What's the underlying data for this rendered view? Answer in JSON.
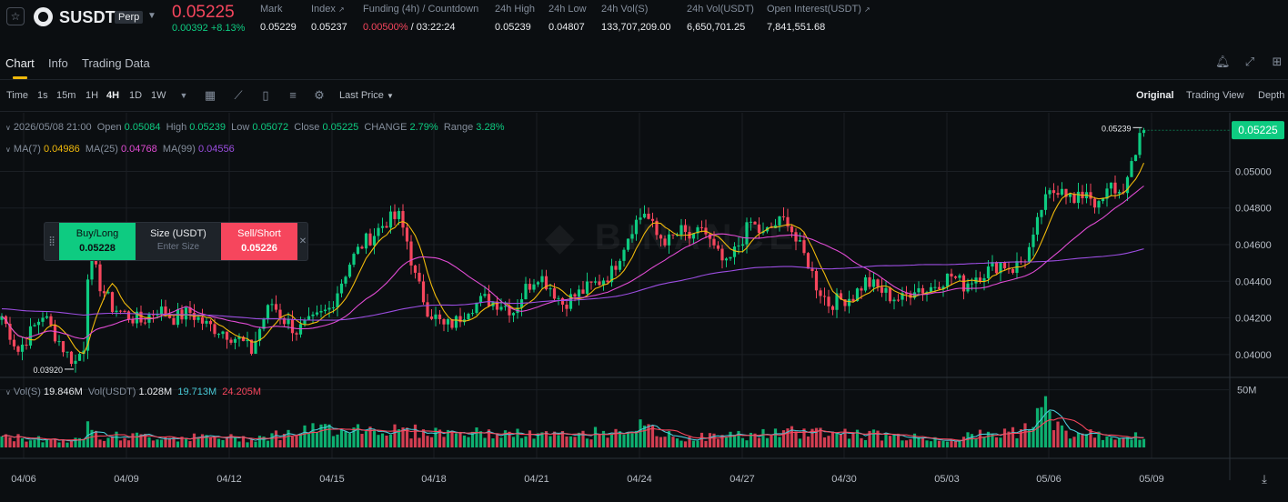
{
  "header": {
    "symbol": "SUSDT",
    "badge": "Perp",
    "last_price": "0.05225",
    "change": "0.00392 +8.13%",
    "stats": [
      {
        "label": "Mark",
        "value": "0.05229"
      },
      {
        "label": "Index",
        "value": "0.05237"
      },
      {
        "label": "Funding (4h) / Countdown",
        "value_red": "0.00500%",
        "value": " / 03:22:24"
      },
      {
        "label": "24h High",
        "value": "0.05239"
      },
      {
        "label": "24h Low",
        "value": "0.04807"
      },
      {
        "label": "24h Vol(S)",
        "value": "133,707,209.00"
      },
      {
        "label": "24h Vol(USDT)",
        "value": "6,650,701.25"
      },
      {
        "label": "Open Interest(USDT)",
        "value": "7,841,551.68"
      }
    ]
  },
  "tabs": [
    {
      "label": "Chart"
    },
    {
      "label": "Info"
    },
    {
      "label": "Trading Data"
    }
  ],
  "toolbar": {
    "intervals": [
      "Time",
      "1s",
      "15m",
      "1H",
      "4H",
      "1D",
      "1W"
    ],
    "active_interval": "4H",
    "price_type": "Last Price",
    "views": [
      "Original",
      "Trading View",
      "Depth"
    ],
    "active_view": "Original"
  },
  "legend": {
    "ohlc": {
      "date": "2026/05/08 21:00",
      "open_label": "Open",
      "open": "0.05084",
      "high_label": "High",
      "high": "0.05239",
      "low_label": "Low",
      "low": "0.05072",
      "close_label": "Close",
      "close": "0.05225",
      "change_label": "CHANGE",
      "change": "2.79%",
      "range_label": "Range",
      "range": "3.28%"
    },
    "ma": {
      "ma7_label": "MA(7)",
      "ma7": "0.04986",
      "ma25_label": "MA(25)",
      "ma25": "0.04768",
      "ma99_label": "MA(99)",
      "ma99": "0.04556"
    },
    "vol": {
      "vol_s_label": "Vol(S)",
      "vol_s": "19.846M",
      "vol_usdt_label": "Vol(USDT)",
      "vol_usdt": "1.028M",
      "v1": "19.713M",
      "v2": "24.205M"
    }
  },
  "trade_panel": {
    "buy_label": "Buy/Long",
    "buy_price": "0.05228",
    "size_label": "Size (USDT)",
    "size_placeholder": "Enter Size",
    "sell_label": "Sell/Short",
    "sell_price": "0.05226"
  },
  "chart_data": {
    "type": "candlestick",
    "price_axis": {
      "ticks": [
        "0.05000",
        "0.04800",
        "0.04600",
        "0.04400",
        "0.04200",
        "0.04000"
      ],
      "min": 0.0388,
      "max": 0.0532
    },
    "current_price_label": "0.05225",
    "high_marker": "0.05239",
    "low_marker": "0.03920",
    "volume_axis": {
      "ticks": [
        "50M"
      ],
      "max": 60
    },
    "x_ticks": [
      "04/06",
      "04/09",
      "04/12",
      "04/15",
      "04/18",
      "04/21",
      "04/24",
      "04/27",
      "04/30",
      "05/03",
      "05/06",
      "05/09"
    ],
    "colors": {
      "up": "#0ecb81",
      "down": "#f6465d",
      "ma7": "#f0b90b",
      "ma25": "#e04bd3",
      "ma99": "#9b4de0",
      "vol_ma1": "#48c9d6",
      "vol_ma2": "#f6465d"
    },
    "close_path": [
      [
        0,
        0.0421
      ],
      [
        4,
        0.0402
      ],
      [
        7,
        0.0412
      ],
      [
        10,
        0.0422
      ],
      [
        13,
        0.0411
      ],
      [
        16,
        0.04
      ],
      [
        18,
        0.0396
      ],
      [
        20,
        0.0405
      ],
      [
        21,
        0.0445
      ],
      [
        22,
        0.0452
      ],
      [
        24,
        0.0438
      ],
      [
        27,
        0.0426
      ],
      [
        30,
        0.0422
      ],
      [
        34,
        0.0418
      ],
      [
        38,
        0.0425
      ],
      [
        42,
        0.042
      ],
      [
        46,
        0.0423
      ],
      [
        50,
        0.0416
      ],
      [
        54,
        0.0413
      ],
      [
        58,
        0.0408
      ],
      [
        61,
        0.0402
      ],
      [
        64,
        0.042
      ],
      [
        66,
        0.0428
      ],
      [
        69,
        0.0419
      ],
      [
        72,
        0.0413
      ],
      [
        76,
        0.0418
      ],
      [
        80,
        0.0425
      ],
      [
        82,
        0.0435
      ],
      [
        85,
        0.045
      ],
      [
        88,
        0.046
      ],
      [
        91,
        0.0466
      ],
      [
        94,
        0.0473
      ],
      [
        97,
        0.0475
      ],
      [
        99,
        0.0462
      ],
      [
        101,
        0.0442
      ],
      [
        104,
        0.0425
      ],
      [
        108,
        0.0415
      ],
      [
        111,
        0.0418
      ],
      [
        114,
        0.0426
      ],
      [
        118,
        0.043
      ],
      [
        122,
        0.0428
      ],
      [
        125,
        0.0424
      ],
      [
        128,
        0.0436
      ],
      [
        131,
        0.0444
      ],
      [
        134,
        0.0437
      ],
      [
        137,
        0.0428
      ],
      [
        140,
        0.0432
      ],
      [
        143,
        0.0436
      ],
      [
        146,
        0.044
      ],
      [
        149,
        0.0445
      ],
      [
        151,
        0.0455
      ],
      [
        154,
        0.047
      ],
      [
        157,
        0.0478
      ],
      [
        160,
        0.0465
      ],
      [
        163,
        0.0462
      ],
      [
        166,
        0.0467
      ],
      [
        169,
        0.0462
      ],
      [
        171,
        0.047
      ],
      [
        174,
        0.0457
      ],
      [
        177,
        0.0448
      ],
      [
        180,
        0.046
      ],
      [
        183,
        0.0472
      ],
      [
        186,
        0.0465
      ],
      [
        189,
        0.0471
      ],
      [
        192,
        0.0474
      ],
      [
        194,
        0.0462
      ],
      [
        197,
        0.045
      ],
      [
        199,
        0.0438
      ],
      [
        202,
        0.0428
      ],
      [
        205,
        0.043
      ],
      [
        208,
        0.0432
      ],
      [
        211,
        0.044
      ],
      [
        214,
        0.0436
      ],
      [
        217,
        0.0432
      ],
      [
        220,
        0.043
      ],
      [
        223,
        0.0437
      ],
      [
        226,
        0.0435
      ],
      [
        229,
        0.044
      ],
      [
        232,
        0.0443
      ],
      [
        235,
        0.0438
      ],
      [
        238,
        0.0443
      ],
      [
        241,
        0.0446
      ],
      [
        244,
        0.045
      ],
      [
        247,
        0.0447
      ],
      [
        250,
        0.0453
      ],
      [
        252,
        0.0462
      ],
      [
        254,
        0.048
      ],
      [
        256,
        0.0487
      ],
      [
        259,
        0.0493
      ],
      [
        262,
        0.0482
      ],
      [
        265,
        0.049
      ],
      [
        268,
        0.048
      ],
      [
        271,
        0.0492
      ],
      [
        273,
        0.0488
      ],
      [
        275,
        0.0495
      ],
      [
        277,
        0.0508
      ],
      [
        278,
        0.05225
      ]
    ],
    "volume_profile": [
      [
        0,
        9
      ],
      [
        20,
        6
      ],
      [
        21,
        40
      ],
      [
        22,
        25
      ],
      [
        24,
        10
      ],
      [
        60,
        8
      ],
      [
        84,
        18
      ],
      [
        100,
        14
      ],
      [
        140,
        10
      ],
      [
        155,
        18
      ],
      [
        165,
        8
      ],
      [
        200,
        14
      ],
      [
        230,
        7
      ],
      [
        252,
        16
      ],
      [
        254,
        38
      ],
      [
        256,
        28
      ],
      [
        260,
        12
      ],
      [
        278,
        9
      ]
    ]
  }
}
